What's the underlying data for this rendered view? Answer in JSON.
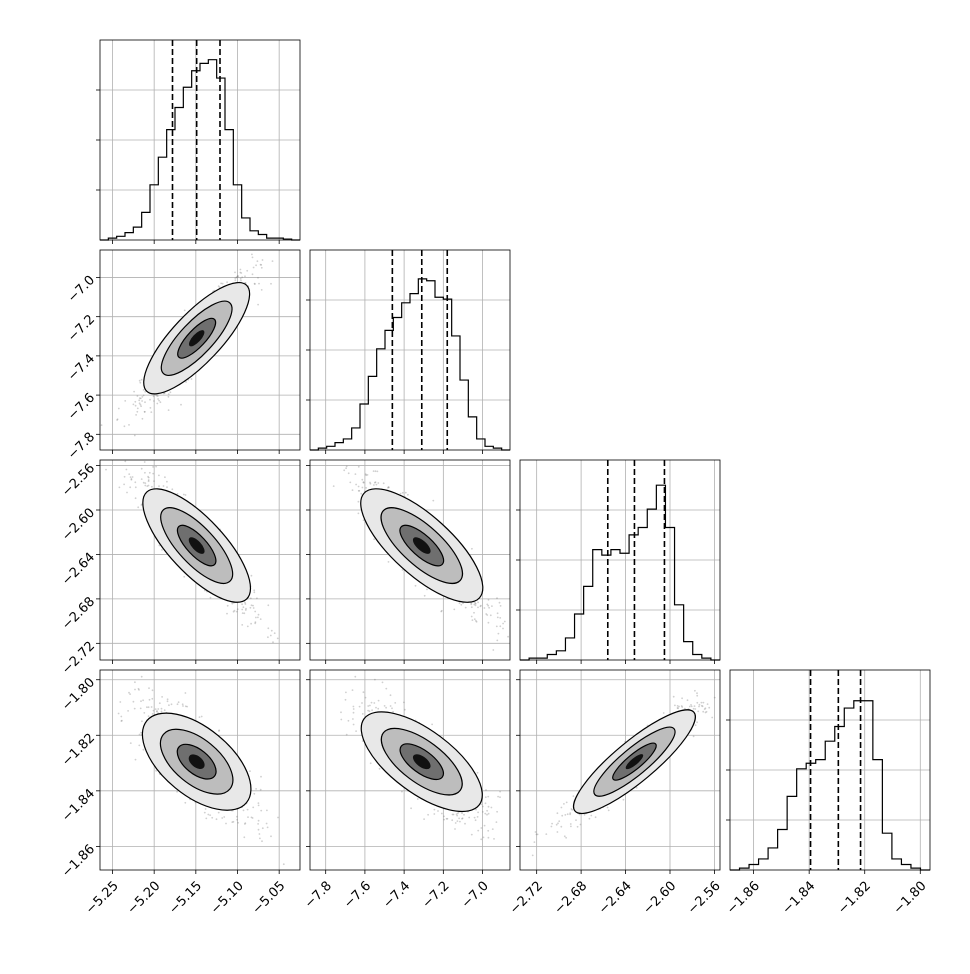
{
  "chart_data": {
    "type": "corner",
    "title": "",
    "parameters": [
      {
        "range": [
          -5.265,
          -5.025
        ],
        "ticks": [
          "−5.25",
          "−5.20",
          "−5.15",
          "−5.10",
          "−5.05"
        ],
        "tick_values": [
          -5.25,
          -5.2,
          -5.15,
          -5.1,
          -5.05
        ],
        "quantiles": [
          -5.178,
          -5.149,
          -5.121
        ],
        "histogram": [
          0,
          0.01,
          0.02,
          0.04,
          0.07,
          0.15,
          0.3,
          0.45,
          0.6,
          0.72,
          0.83,
          0.92,
          0.96,
          0.98,
          0.88,
          0.6,
          0.3,
          0.12,
          0.05,
          0.03,
          0.01,
          0.01,
          0.005,
          0
        ]
      },
      {
        "range": [
          -7.88,
          -6.86
        ],
        "ticks": [
          "−7.8",
          "−7.6",
          "−7.4",
          "−7.2",
          "−7.0"
        ],
        "tick_values": [
          -7.8,
          -7.6,
          -7.4,
          -7.2,
          -7.0
        ],
        "quantiles": [
          -7.46,
          -7.31,
          -7.18
        ],
        "histogram": [
          0,
          0.01,
          0.02,
          0.04,
          0.06,
          0.12,
          0.25,
          0.4,
          0.55,
          0.65,
          0.72,
          0.8,
          0.85,
          0.93,
          0.92,
          0.83,
          0.82,
          0.62,
          0.38,
          0.18,
          0.06,
          0.02,
          0.01,
          0
        ]
      },
      {
        "range": [
          -2.735,
          -2.555
        ],
        "ticks": [
          "−2.72",
          "−2.68",
          "−2.64",
          "−2.60",
          "−2.56"
        ],
        "tick_values": [
          -2.72,
          -2.68,
          -2.64,
          -2.6,
          -2.56
        ],
        "quantiles": [
          -2.656,
          -2.632,
          -2.605
        ],
        "histogram": [
          0,
          0.01,
          0.01,
          0.03,
          0.05,
          0.12,
          0.25,
          0.4,
          0.6,
          0.57,
          0.6,
          0.58,
          0.68,
          0.72,
          0.82,
          0.95,
          0.72,
          0.3,
          0.1,
          0.03,
          0.01,
          0
        ]
      },
      {
        "range": [
          -1.8685,
          -1.7965
        ],
        "ticks": [
          "−1.86",
          "−1.84",
          "−1.82",
          "−1.80"
        ],
        "tick_values": [
          -1.86,
          -1.84,
          -1.82,
          -1.8
        ],
        "quantiles": [
          -1.8395,
          -1.8295,
          -1.8215
        ],
        "histogram": [
          0,
          0.01,
          0.03,
          0.06,
          0.12,
          0.22,
          0.4,
          0.55,
          0.58,
          0.6,
          0.7,
          0.78,
          0.88,
          0.92,
          0.92,
          0.6,
          0.2,
          0.06,
          0.03,
          0.01,
          0
        ]
      }
    ],
    "correlations": [
      [
        null,
        null,
        null,
        null
      ],
      [
        0.92,
        null,
        null,
        null
      ],
      [
        -0.9,
        -0.88,
        null,
        null
      ],
      [
        -0.78,
        -0.82,
        0.94,
        null
      ]
    ],
    "grid": true,
    "quantile_lines": "dashed"
  }
}
